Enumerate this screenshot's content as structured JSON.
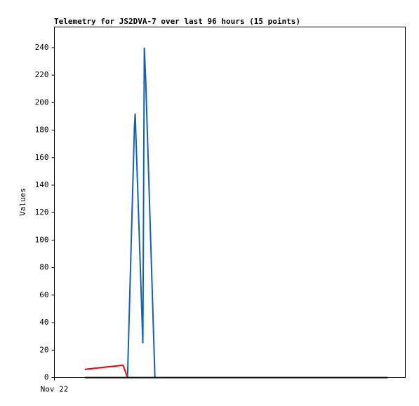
{
  "chart_data": {
    "type": "line",
    "title": "Telemetry for JS2DVA-7 over last 96 hours (15 points)",
    "y_label": "Values",
    "xlim": [
      0,
      96
    ],
    "xticks": [
      {
        "value": 0,
        "label": "Nov 22"
      }
    ],
    "ylim": [
      0,
      255
    ],
    "yticks": [
      0,
      20,
      40,
      60,
      80,
      100,
      120,
      140,
      160,
      180,
      200,
      220,
      240
    ],
    "series": [
      {
        "color": "#ff0000",
        "x": [
          8.3,
          18.8,
          20.0
        ],
        "values": [
          6,
          9,
          0
        ]
      },
      {
        "color": "#1060c0",
        "x": [
          20.0,
          21.9,
          22.1,
          24.2,
          24.6,
          25.0,
          27.5
        ],
        "values": [
          0,
          183,
          192,
          25,
          240,
          215,
          0
        ]
      },
      {
        "color": "#000000",
        "x": [
          8.3,
          91.2
        ],
        "values": [
          0,
          0
        ]
      }
    ]
  }
}
